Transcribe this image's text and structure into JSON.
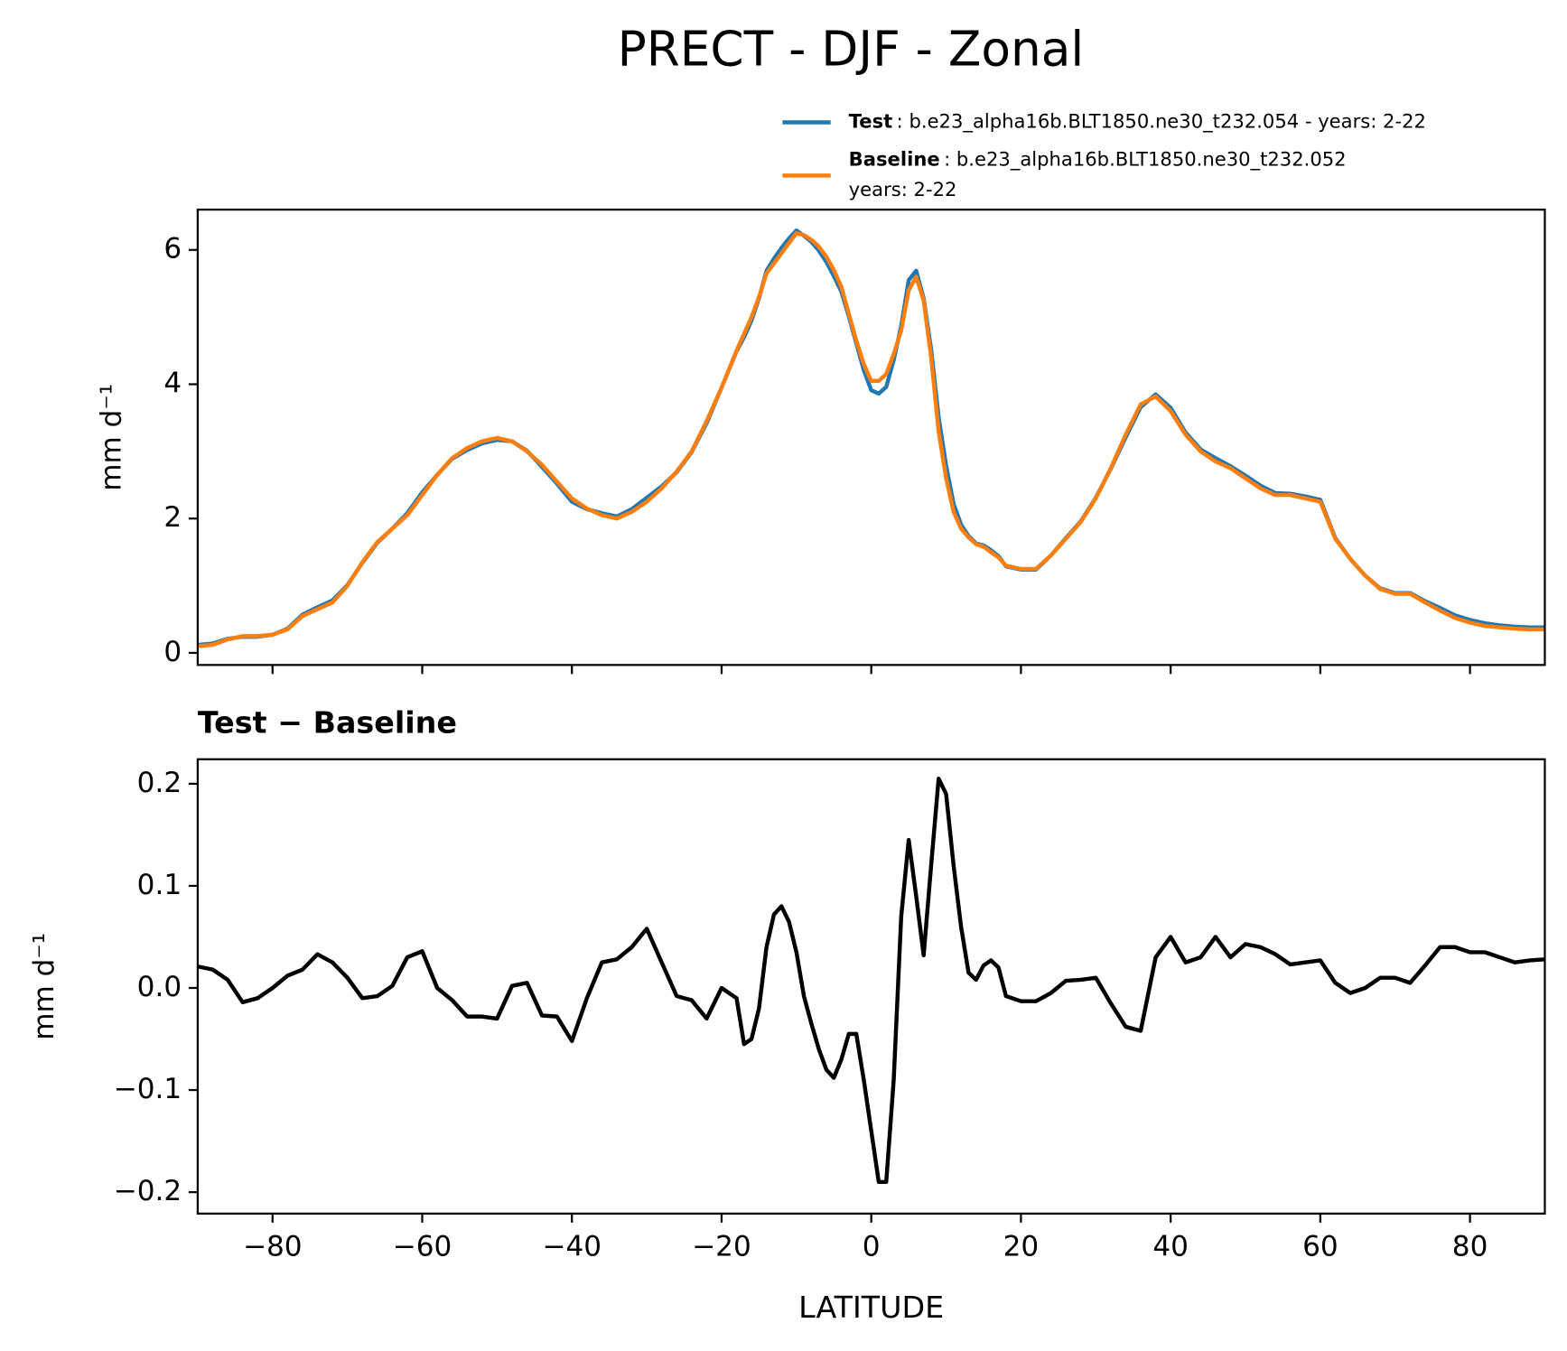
{
  "title": "PRECT - DJF - Zonal",
  "chart_data": [
    {
      "type": "line",
      "ylabel": "mm d⁻¹",
      "x": [
        -90,
        -88,
        -86,
        -84,
        -82,
        -80,
        -78,
        -76,
        -74,
        -72,
        -70,
        -68,
        -66,
        -64,
        -62,
        -60,
        -58,
        -56,
        -54,
        -52,
        -50,
        -48,
        -46,
        -44,
        -42,
        -40,
        -38,
        -36,
        -34,
        -32,
        -30,
        -28,
        -26,
        -24,
        -22,
        -20,
        -18,
        -17,
        -16,
        -15,
        -14,
        -13,
        -12,
        -11,
        -10,
        -9,
        -8,
        -7,
        -6,
        -5,
        -4,
        -3,
        -2,
        -1,
        0,
        1,
        2,
        3,
        4,
        5,
        6,
        7,
        8,
        9,
        10,
        11,
        12,
        13,
        14,
        15,
        16,
        17,
        18,
        20,
        22,
        24,
        26,
        28,
        30,
        32,
        34,
        36,
        38,
        40,
        42,
        44,
        46,
        48,
        50,
        52,
        54,
        56,
        58,
        60,
        62,
        64,
        66,
        68,
        70,
        72,
        74,
        76,
        78,
        80,
        82,
        84,
        86,
        88,
        90
      ],
      "xlim": [
        -90,
        90
      ],
      "xticks": [
        -80,
        -60,
        -40,
        -20,
        0,
        20,
        40,
        60,
        80
      ],
      "ylim": [
        -0.18,
        6.6
      ],
      "yticks": [
        0,
        2,
        4,
        6
      ],
      "series": [
        {
          "name": "Test",
          "description": [
            ": b.e23_alpha16b.BLT1850.ne30_t232.054 - years: 2-22"
          ],
          "color": "#1f77b4",
          "values": [
            0.12,
            0.14,
            0.21,
            0.24,
            0.24,
            0.27,
            0.36,
            0.57,
            0.68,
            0.78,
            1.01,
            1.34,
            1.64,
            1.85,
            2.08,
            2.39,
            2.65,
            2.89,
            3.02,
            3.12,
            3.17,
            3.15,
            3.01,
            2.77,
            2.52,
            2.25,
            2.14,
            2.08,
            2.03,
            2.14,
            2.31,
            2.48,
            2.69,
            2.99,
            3.42,
            3.95,
            4.49,
            4.7,
            4.95,
            5.28,
            5.69,
            5.87,
            6.03,
            6.17,
            6.29,
            6.21,
            6.12,
            5.99,
            5.82,
            5.61,
            5.38,
            5.01,
            4.61,
            4.21,
            3.91,
            3.86,
            3.96,
            4.36,
            4.87,
            5.55,
            5.69,
            5.28,
            4.52,
            3.51,
            2.79,
            2.22,
            1.91,
            1.74,
            1.63,
            1.6,
            1.53,
            1.44,
            1.29,
            1.24,
            1.24,
            1.45,
            1.71,
            1.96,
            2.31,
            2.74,
            3.21,
            3.66,
            3.85,
            3.65,
            3.28,
            3.03,
            2.9,
            2.78,
            2.64,
            2.49,
            2.38,
            2.37,
            2.33,
            2.28,
            1.71,
            1.4,
            1.15,
            0.96,
            0.89,
            0.89,
            0.77,
            0.67,
            0.56,
            0.49,
            0.44,
            0.41,
            0.39,
            0.38,
            0.38
          ]
        },
        {
          "name": "Baseline",
          "description": [
            ": b.e23_alpha16b.BLT1850.ne30_t232.052",
            "years: 2-22"
          ],
          "color": "#ff7f0e",
          "values": [
            0.1,
            0.12,
            0.2,
            0.25,
            0.25,
            0.27,
            0.35,
            0.55,
            0.65,
            0.75,
            1.0,
            1.35,
            1.65,
            1.85,
            2.05,
            2.35,
            2.65,
            2.9,
            3.05,
            3.15,
            3.2,
            3.15,
            3.0,
            2.8,
            2.55,
            2.3,
            2.15,
            2.05,
            2.0,
            2.1,
            2.25,
            2.45,
            2.7,
            3.0,
            3.45,
            3.95,
            4.5,
            4.75,
            5.0,
            5.3,
            5.65,
            5.8,
            5.95,
            6.1,
            6.25,
            6.22,
            6.15,
            6.05,
            5.9,
            5.7,
            5.45,
            5.05,
            4.65,
            4.3,
            4.05,
            4.05,
            4.15,
            4.45,
            4.8,
            5.4,
            5.6,
            5.25,
            4.4,
            3.3,
            2.6,
            2.1,
            1.85,
            1.72,
            1.62,
            1.58,
            1.5,
            1.42,
            1.3,
            1.25,
            1.25,
            1.45,
            1.7,
            1.95,
            2.3,
            2.75,
            3.25,
            3.7,
            3.82,
            3.6,
            3.25,
            3.0,
            2.85,
            2.75,
            2.6,
            2.45,
            2.35,
            2.35,
            2.3,
            2.25,
            1.7,
            1.4,
            1.15,
            0.95,
            0.88,
            0.88,
            0.75,
            0.63,
            0.52,
            0.45,
            0.4,
            0.38,
            0.36,
            0.35,
            0.35
          ]
        }
      ]
    },
    {
      "type": "line",
      "title": "Test − Baseline",
      "xlabel": "LATITUDE",
      "ylabel": "mm d⁻¹",
      "x": [
        -90,
        -88,
        -86,
        -84,
        -82,
        -80,
        -78,
        -76,
        -74,
        -72,
        -70,
        -68,
        -66,
        -64,
        -62,
        -60,
        -58,
        -56,
        -54,
        -52,
        -50,
        -48,
        -46,
        -44,
        -42,
        -40,
        -38,
        -36,
        -34,
        -32,
        -30,
        -28,
        -26,
        -24,
        -22,
        -20,
        -18,
        -17,
        -16,
        -15,
        -14,
        -13,
        -12,
        -11,
        -10,
        -9,
        -8,
        -7,
        -6,
        -5,
        -4,
        -3,
        -2,
        -1,
        0,
        1,
        2,
        3,
        4,
        5,
        6,
        7,
        8,
        9,
        10,
        11,
        12,
        13,
        14,
        15,
        16,
        17,
        18,
        20,
        22,
        24,
        26,
        28,
        30,
        32,
        34,
        36,
        38,
        40,
        42,
        44,
        46,
        48,
        50,
        52,
        54,
        56,
        58,
        60,
        62,
        64,
        66,
        68,
        70,
        72,
        74,
        76,
        78,
        80,
        82,
        84,
        86,
        88,
        90
      ],
      "xlim": [
        -90,
        90
      ],
      "xticks": [
        {
          "value": -80,
          "label": "−80"
        },
        {
          "value": -60,
          "label": "−60"
        },
        {
          "value": -40,
          "label": "−40"
        },
        {
          "value": -20,
          "label": "−20"
        },
        0,
        20,
        40,
        60,
        80
      ],
      "ylim": [
        -0.221,
        0.224
      ],
      "yticks": [
        {
          "value": -0.2,
          "label": "−0.2"
        },
        {
          "value": -0.1,
          "label": "−0.1"
        },
        {
          "value": 0,
          "label": "0.0"
        },
        0.1,
        0.2
      ],
      "series": [
        {
          "color": "#000000",
          "values": [
            0.021,
            0.018,
            0.008,
            -0.014,
            -0.01,
            0.0,
            0.012,
            0.018,
            0.033,
            0.025,
            0.01,
            -0.01,
            -0.008,
            0.002,
            0.03,
            0.036,
            0.0,
            -0.012,
            -0.028,
            -0.028,
            -0.03,
            0.002,
            0.005,
            -0.027,
            -0.028,
            -0.052,
            -0.01,
            0.025,
            0.028,
            0.04,
            0.058,
            0.025,
            -0.008,
            -0.012,
            -0.03,
            0.0,
            -0.01,
            -0.055,
            -0.05,
            -0.02,
            0.04,
            0.072,
            0.08,
            0.065,
            0.035,
            -0.008,
            -0.035,
            -0.06,
            -0.08,
            -0.088,
            -0.07,
            -0.045,
            -0.045,
            -0.09,
            -0.14,
            -0.19,
            -0.19,
            -0.09,
            0.07,
            0.145,
            0.09,
            0.032,
            0.12,
            0.205,
            0.19,
            0.12,
            0.06,
            0.015,
            0.008,
            0.022,
            0.027,
            0.02,
            -0.008,
            -0.013,
            -0.013,
            -0.005,
            0.007,
            0.008,
            0.01,
            -0.015,
            -0.038,
            -0.042,
            0.03,
            0.05,
            0.025,
            0.03,
            0.05,
            0.03,
            0.043,
            0.04,
            0.033,
            0.023,
            0.025,
            0.027,
            0.005,
            -0.005,
            0.0,
            0.01,
            0.01,
            0.005,
            0.022,
            0.04,
            0.04,
            0.035,
            0.035,
            0.03,
            0.025,
            0.027,
            0.028
          ]
        }
      ]
    }
  ]
}
